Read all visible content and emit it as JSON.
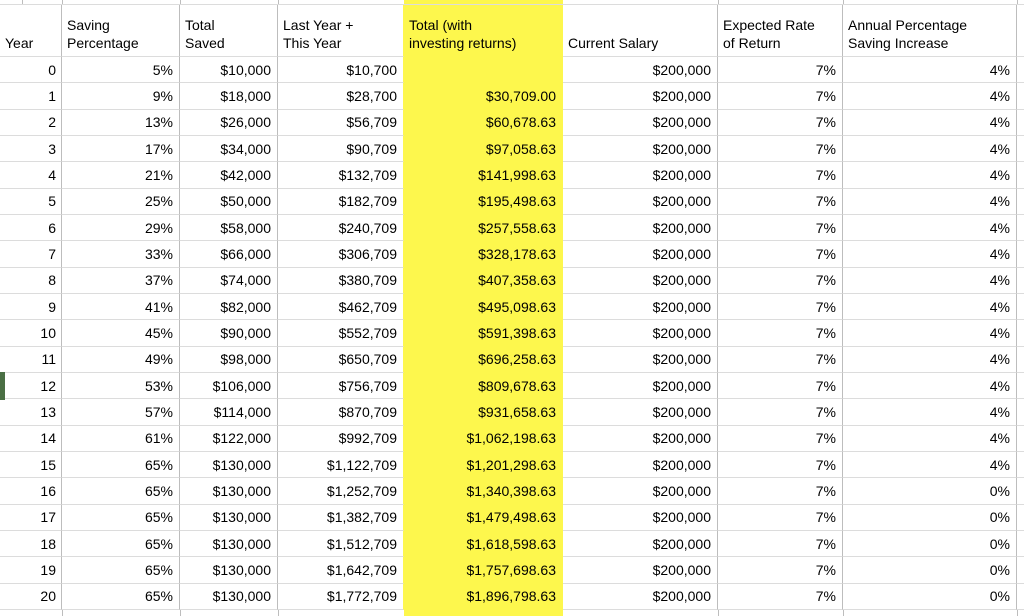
{
  "table": {
    "columns": [
      {
        "label": "Year"
      },
      {
        "label": "Saving\nPercentage"
      },
      {
        "label": "Total\nSaved"
      },
      {
        "label": "Last Year +\nThis Year"
      },
      {
        "label": "Total (with\ninvesting returns)"
      },
      {
        "label": "Current Salary"
      },
      {
        "label": "Expected Rate\nof Return"
      },
      {
        "label": "Annual Percentage\nSaving Increase"
      }
    ],
    "highlighted_column": "Total (with investing returns)",
    "rows": [
      [
        "0",
        "5%",
        "$10,000",
        "$10,700",
        "",
        "$200,000",
        "7%",
        "4%"
      ],
      [
        "1",
        "9%",
        "$18,000",
        "$28,700",
        "$30,709.00",
        "$200,000",
        "7%",
        "4%"
      ],
      [
        "2",
        "13%",
        "$26,000",
        "$56,709",
        "$60,678.63",
        "$200,000",
        "7%",
        "4%"
      ],
      [
        "3",
        "17%",
        "$34,000",
        "$90,709",
        "$97,058.63",
        "$200,000",
        "7%",
        "4%"
      ],
      [
        "4",
        "21%",
        "$42,000",
        "$132,709",
        "$141,998.63",
        "$200,000",
        "7%",
        "4%"
      ],
      [
        "5",
        "25%",
        "$50,000",
        "$182,709",
        "$195,498.63",
        "$200,000",
        "7%",
        "4%"
      ],
      [
        "6",
        "29%",
        "$58,000",
        "$240,709",
        "$257,558.63",
        "$200,000",
        "7%",
        "4%"
      ],
      [
        "7",
        "33%",
        "$66,000",
        "$306,709",
        "$328,178.63",
        "$200,000",
        "7%",
        "4%"
      ],
      [
        "8",
        "37%",
        "$74,000",
        "$380,709",
        "$407,358.63",
        "$200,000",
        "7%",
        "4%"
      ],
      [
        "9",
        "41%",
        "$82,000",
        "$462,709",
        "$495,098.63",
        "$200,000",
        "7%",
        "4%"
      ],
      [
        "10",
        "45%",
        "$90,000",
        "$552,709",
        "$591,398.63",
        "$200,000",
        "7%",
        "4%"
      ],
      [
        "11",
        "49%",
        "$98,000",
        "$650,709",
        "$696,258.63",
        "$200,000",
        "7%",
        "4%"
      ],
      [
        "12",
        "53%",
        "$106,000",
        "$756,709",
        "$809,678.63",
        "$200,000",
        "7%",
        "4%"
      ],
      [
        "13",
        "57%",
        "$114,000",
        "$870,709",
        "$931,658.63",
        "$200,000",
        "7%",
        "4%"
      ],
      [
        "14",
        "61%",
        "$122,000",
        "$992,709",
        "$1,062,198.63",
        "$200,000",
        "7%",
        "4%"
      ],
      [
        "15",
        "65%",
        "$130,000",
        "$1,122,709",
        "$1,201,298.63",
        "$200,000",
        "7%",
        "4%"
      ],
      [
        "16",
        "65%",
        "$130,000",
        "$1,252,709",
        "$1,340,398.63",
        "$200,000",
        "7%",
        "0%"
      ],
      [
        "17",
        "65%",
        "$130,000",
        "$1,382,709",
        "$1,479,498.63",
        "$200,000",
        "7%",
        "0%"
      ],
      [
        "18",
        "65%",
        "$130,000",
        "$1,512,709",
        "$1,618,598.63",
        "$200,000",
        "7%",
        "0%"
      ],
      [
        "19",
        "65%",
        "$130,000",
        "$1,642,709",
        "$1,757,698.63",
        "$200,000",
        "7%",
        "0%"
      ],
      [
        "20",
        "65%",
        "$130,000",
        "$1,772,709",
        "$1,896,798.63",
        "$200,000",
        "7%",
        "0%"
      ]
    ]
  },
  "colors": {
    "highlight": "#fdf74d",
    "row_marker": "#4a6f44",
    "gridline_vertical": "#bdbdbd",
    "gridline_horizontal": "#dcdcdc"
  }
}
